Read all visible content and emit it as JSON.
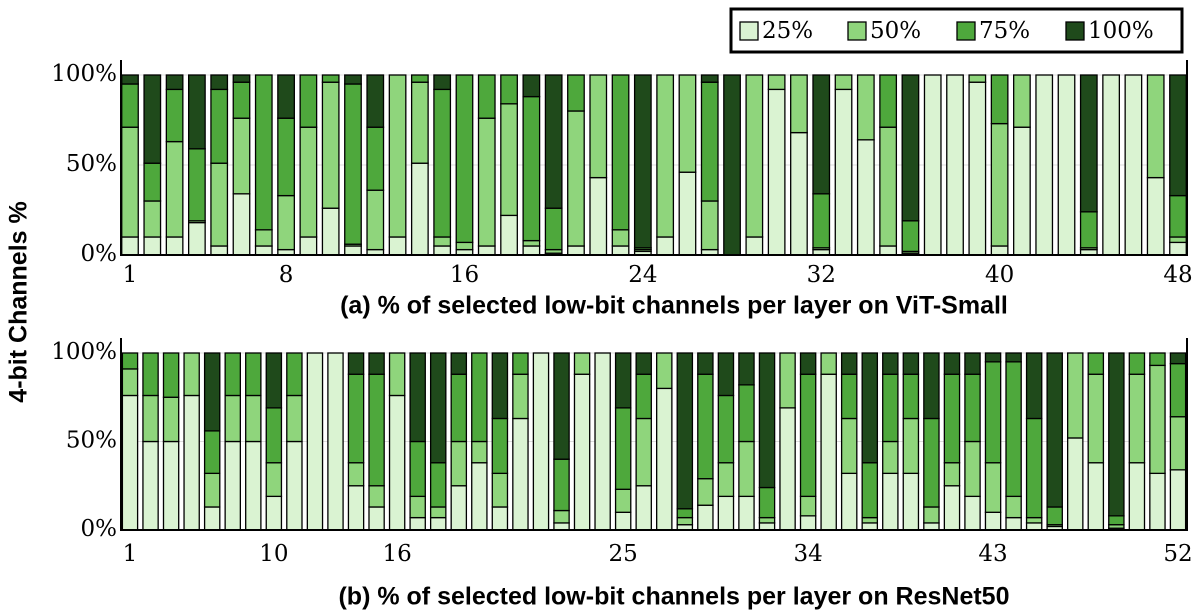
{
  "ylabel": "4-bit Channels %",
  "chart_data": [
    {
      "type": "bar",
      "stacked": true,
      "grid": true,
      "title": "(a) % of selected low-bit channels per layer on ViT-Small",
      "categories": [
        "1",
        null,
        null,
        null,
        null,
        null,
        null,
        "8",
        null,
        null,
        null,
        null,
        null,
        null,
        null,
        "16",
        null,
        null,
        null,
        null,
        null,
        null,
        null,
        "24",
        null,
        null,
        null,
        null,
        null,
        null,
        null,
        "32",
        null,
        null,
        null,
        null,
        null,
        null,
        null,
        "40",
        null,
        null,
        null,
        null,
        null,
        null,
        null,
        "48"
      ],
      "ylim": [
        0,
        100
      ],
      "yticks": [
        {
          "value": 0,
          "label": "0%"
        },
        {
          "value": 50,
          "label": "50%"
        },
        {
          "value": 100,
          "label": "100%"
        }
      ],
      "series": [
        {
          "name": "25%",
          "color": "#daf3d2",
          "values": [
            10,
            10,
            10,
            18,
            5,
            34,
            5,
            3,
            10,
            26,
            5,
            3,
            10,
            51,
            5,
            3,
            5,
            22,
            5,
            1,
            5,
            43,
            5,
            2,
            10,
            46,
            3,
            0,
            10,
            92,
            68,
            3,
            92,
            64,
            5,
            1,
            100,
            100,
            96,
            5,
            71,
            100,
            100,
            3,
            100,
            100,
            43,
            7
          ]
        },
        {
          "name": "50%",
          "color": "#8fd57c",
          "values": [
            61,
            20,
            53,
            1,
            46,
            42,
            9,
            30,
            61,
            70,
            1,
            33,
            90,
            45,
            5,
            4,
            71,
            62,
            3,
            2,
            75,
            57,
            9,
            1,
            90,
            54,
            27,
            0,
            90,
            8,
            32,
            1,
            8,
            36,
            66,
            1,
            0,
            0,
            4,
            68,
            29,
            0,
            0,
            1,
            0,
            0,
            57,
            3
          ]
        },
        {
          "name": "75%",
          "color": "#4ea83c",
          "values": [
            24,
            21,
            29,
            40,
            41,
            20,
            86,
            43,
            29,
            4,
            89,
            35,
            0,
            4,
            82,
            93,
            24,
            16,
            80,
            23,
            20,
            0,
            86,
            1,
            0,
            0,
            66,
            0,
            0,
            0,
            0,
            30,
            0,
            0,
            29,
            17,
            0,
            0,
            0,
            27,
            0,
            0,
            0,
            20,
            0,
            0,
            0,
            23
          ]
        },
        {
          "name": "100%",
          "color": "#1f4a1b",
          "values": [
            5,
            49,
            8,
            41,
            8,
            4,
            0,
            24,
            0,
            0,
            5,
            29,
            0,
            0,
            8,
            0,
            0,
            0,
            12,
            74,
            0,
            0,
            0,
            96,
            0,
            0,
            4,
            100,
            0,
            0,
            0,
            66,
            0,
            0,
            0,
            81,
            0,
            0,
            0,
            0,
            0,
            0,
            0,
            76,
            0,
            0,
            0,
            67
          ]
        }
      ]
    },
    {
      "type": "bar",
      "stacked": true,
      "grid": true,
      "title": "(b) % of selected low-bit channels per layer on ResNet50",
      "categories": [
        "1",
        null,
        null,
        null,
        null,
        null,
        null,
        "10",
        null,
        null,
        null,
        null,
        null,
        "16",
        null,
        null,
        null,
        null,
        null,
        null,
        null,
        null,
        null,
        null,
        "25",
        null,
        null,
        null,
        null,
        null,
        null,
        null,
        null,
        "34",
        null,
        null,
        null,
        null,
        null,
        null,
        null,
        null,
        "43",
        null,
        null,
        null,
        null,
        null,
        null,
        null,
        null,
        "52"
      ],
      "ylim": [
        0,
        100
      ],
      "yticks": [
        {
          "value": 0,
          "label": "0%"
        },
        {
          "value": 50,
          "label": "50%"
        },
        {
          "value": 100,
          "label": "100%"
        }
      ],
      "series": [
        {
          "color": "#daf3d2",
          "values": [
            76,
            50,
            50,
            76,
            13,
            50,
            50,
            19,
            50,
            100,
            100,
            25,
            13,
            76,
            7,
            7,
            25,
            38,
            13,
            63,
            100,
            4,
            88,
            100,
            10,
            25,
            80,
            3,
            14,
            19,
            19,
            4,
            69,
            8,
            88,
            32,
            4,
            32,
            32,
            4,
            25,
            19,
            10,
            7,
            4,
            2,
            52,
            38,
            1,
            38,
            32,
            34
          ]
        },
        {
          "color": "#8fd57c",
          "values": [
            15,
            26,
            25,
            24,
            19,
            26,
            26,
            19,
            26,
            0,
            0,
            13,
            12,
            24,
            12,
            6,
            25,
            12,
            19,
            25,
            0,
            7,
            12,
            0,
            13,
            38,
            20,
            4,
            15,
            19,
            31,
            3,
            31,
            11,
            12,
            31,
            3,
            18,
            31,
            9,
            13,
            31,
            28,
            12,
            3,
            1,
            48,
            50,
            2,
            50,
            61,
            30
          ]
        },
        {
          "color": "#4ea83c",
          "values": [
            9,
            24,
            25,
            0,
            24,
            24,
            24,
            31,
            24,
            0,
            0,
            50,
            63,
            0,
            31,
            25,
            38,
            50,
            31,
            12,
            0,
            29,
            0,
            0,
            46,
            25,
            0,
            5,
            59,
            38,
            32,
            17,
            0,
            69,
            0,
            25,
            31,
            38,
            25,
            50,
            50,
            38,
            57,
            76,
            56,
            10,
            0,
            12,
            5,
            12,
            7,
            30
          ]
        },
        {
          "color": "#1f4a1b",
          "values": [
            0,
            0,
            0,
            0,
            44,
            0,
            0,
            31,
            0,
            0,
            0,
            12,
            12,
            0,
            50,
            62,
            12,
            0,
            37,
            0,
            0,
            60,
            0,
            0,
            31,
            12,
            0,
            88,
            12,
            24,
            18,
            76,
            0,
            12,
            0,
            12,
            62,
            12,
            12,
            37,
            12,
            12,
            5,
            5,
            37,
            87,
            0,
            0,
            92,
            0,
            0,
            6
          ]
        }
      ]
    }
  ]
}
